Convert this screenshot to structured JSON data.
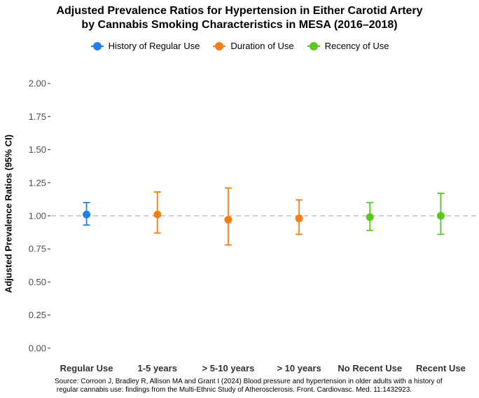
{
  "chart_data": {
    "type": "scatter",
    "title_line1": "Adjusted Prevalence Ratios for Hypertension in Either Carotid Artery",
    "title_line2": "by Cannabis Smoking Characteristics in MESA (2016–2018)",
    "xlabel": "",
    "ylabel": "Adjusted Prevalence Ratios (95% CI)",
    "ylim": [
      -0.08,
      2.08
    ],
    "yticks": [
      0.0,
      0.25,
      0.5,
      0.75,
      1.0,
      1.25,
      1.5,
      1.75,
      2.0
    ],
    "ytick_labels": [
      "0.00",
      "0.25",
      "0.50",
      "0.75",
      "1.00",
      "1.25",
      "1.50",
      "1.75",
      "2.00"
    ],
    "reference_line": 1.0,
    "categories": [
      "Regular Use",
      "1-5 years",
      "> 5-10 years",
      "> 10 years",
      "No Recent Use",
      "Recent Use"
    ],
    "legend": [
      {
        "name": "History of Regular Use",
        "color": "#1f7fef"
      },
      {
        "name": "Duration of Use",
        "color": "#f57f17"
      },
      {
        "name": "Recency of Use",
        "color": "#5ac81b"
      }
    ],
    "points": [
      {
        "category": "Regular Use",
        "group": "History of Regular Use",
        "estimate": 1.01,
        "lower": 0.93,
        "upper": 1.1
      },
      {
        "category": "1-5 years",
        "group": "Duration of Use",
        "estimate": 1.01,
        "lower": 0.87,
        "upper": 1.18
      },
      {
        "category": "> 5-10 years",
        "group": "Duration of Use",
        "estimate": 0.97,
        "lower": 0.78,
        "upper": 1.21
      },
      {
        "category": "> 10 years",
        "group": "Duration of Use",
        "estimate": 0.98,
        "lower": 0.86,
        "upper": 1.12
      },
      {
        "category": "No Recent Use",
        "group": "Recency of Use",
        "estimate": 0.99,
        "lower": 0.89,
        "upper": 1.1
      },
      {
        "category": "Recent Use",
        "group": "Recency of Use",
        "estimate": 1.0,
        "lower": 0.86,
        "upper": 1.17
      }
    ]
  },
  "source": {
    "line1": "Source: Corroon J, Bradley R, Allison MA and Grant I (2024) Blood pressure and hypertension in older adults with a history of",
    "line2": " regular cannabis use: findings from the Multi-Ethnic Study of Atherosclerosis. Front. Cardiovasc. Med. 11:1432923."
  }
}
